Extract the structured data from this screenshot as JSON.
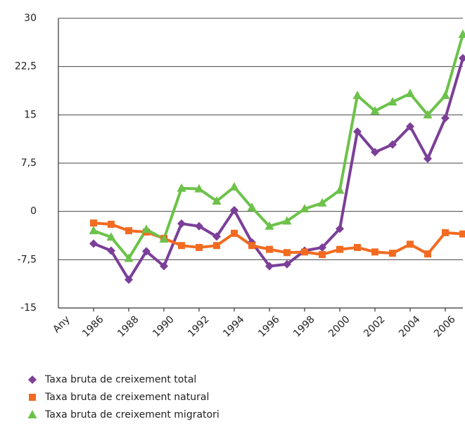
{
  "chart_data": {
    "type": "line",
    "x_label": "Any",
    "x": [
      1986,
      1987,
      1988,
      1989,
      1990,
      1991,
      1992,
      1993,
      1994,
      1995,
      1996,
      1997,
      1998,
      1999,
      2000,
      2001,
      2002,
      2003,
      2004,
      2005,
      2006,
      2007
    ],
    "xlim": [
      1984,
      2007
    ],
    "xticks": [
      1986,
      1988,
      1990,
      1992,
      1994,
      1996,
      1998,
      2000,
      2002,
      2004,
      2006
    ],
    "ylim": [
      -15,
      30
    ],
    "yticks": [
      {
        "value": -15,
        "label": "-15"
      },
      {
        "value": -7.5,
        "label": "-7,5"
      },
      0,
      {
        "value": 7.5,
        "label": "7,5"
      },
      15,
      {
        "value": 22.5,
        "label": "22,5"
      },
      30
    ],
    "grid": true,
    "legend": "bottom-left",
    "series": [
      {
        "name": "Taxa bruta de creixement total",
        "color": "#7b3f98",
        "marker": "diamond",
        "values": [
          -5.0,
          -6.1,
          -10.6,
          -6.2,
          -8.5,
          -1.9,
          -2.3,
          -3.9,
          0.2,
          -4.8,
          -8.5,
          -8.2,
          -6.1,
          -5.6,
          -2.7,
          12.4,
          9.2,
          10.4,
          13.2,
          8.2,
          14.5,
          23.8
        ]
      },
      {
        "name": "Taxa bruta de creixement natural",
        "color": "#f26b21",
        "marker": "square",
        "values": [
          -1.8,
          -2.0,
          -3.0,
          -3.2,
          -4.2,
          -5.3,
          -5.6,
          -5.3,
          -3.4,
          -5.3,
          -5.9,
          -6.4,
          -6.3,
          -6.7,
          -5.9,
          -5.6,
          -6.3,
          -6.5,
          -5.1,
          -6.6,
          -3.3,
          -3.5
        ]
      },
      {
        "name": "Taxa bruta de creixement migratori",
        "color": "#6cc24a",
        "marker": "triangle",
        "values": [
          -3.0,
          -4.0,
          -7.3,
          -2.8,
          -4.3,
          3.6,
          3.5,
          1.6,
          3.8,
          0.6,
          -2.3,
          -1.5,
          0.4,
          1.3,
          3.3,
          18.0,
          15.6,
          17.0,
          18.3,
          15.0,
          18.0,
          27.5
        ]
      }
    ]
  }
}
